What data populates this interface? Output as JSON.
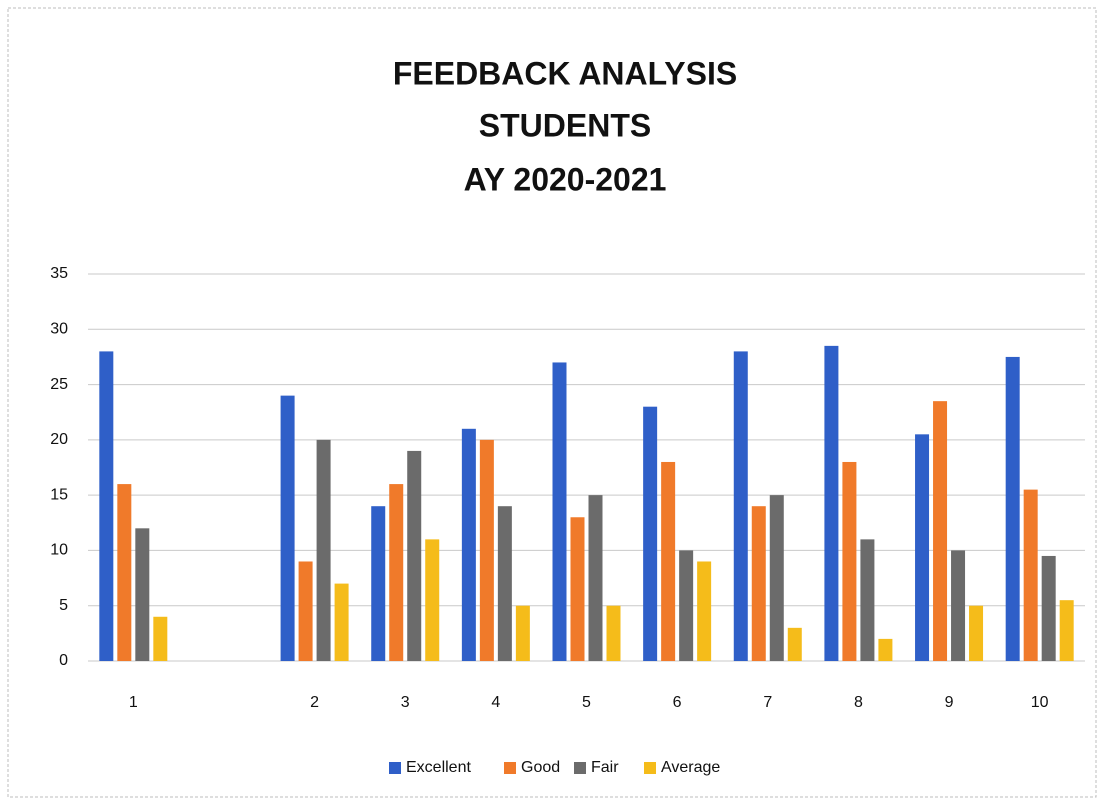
{
  "chart_data": {
    "type": "bar",
    "title": [
      "FEEDBACK ANALYSIS",
      "STUDENTS",
      "AY 2020-2021"
    ],
    "categories": [
      "1",
      null,
      "2",
      "3",
      "4",
      "5",
      "6",
      "7",
      "8",
      "9",
      "10"
    ],
    "series": [
      {
        "name": "Excellent",
        "color": "#2f5fc8",
        "values": [
          28,
          null,
          24,
          14,
          21,
          27,
          23,
          28,
          28.5,
          20.5,
          27.5
        ]
      },
      {
        "name": "Good",
        "color": "#f07a2a",
        "values": [
          16,
          null,
          9,
          16,
          20,
          13,
          18,
          14,
          18,
          23.5,
          15.5
        ]
      },
      {
        "name": "Fair",
        "color": "#6b6b6b",
        "values": [
          12,
          null,
          20,
          19,
          14,
          15,
          10,
          15,
          11,
          10,
          9.5
        ]
      },
      {
        "name": "Average",
        "color": "#f5bc1a",
        "values": [
          4,
          null,
          7,
          11,
          5,
          5,
          9,
          3,
          2,
          5,
          5.5
        ]
      }
    ],
    "ylim": [
      0,
      35
    ],
    "yticks": [
      0,
      5,
      10,
      15,
      20,
      25,
      30,
      35
    ],
    "grid": true,
    "legend": "bottom"
  }
}
